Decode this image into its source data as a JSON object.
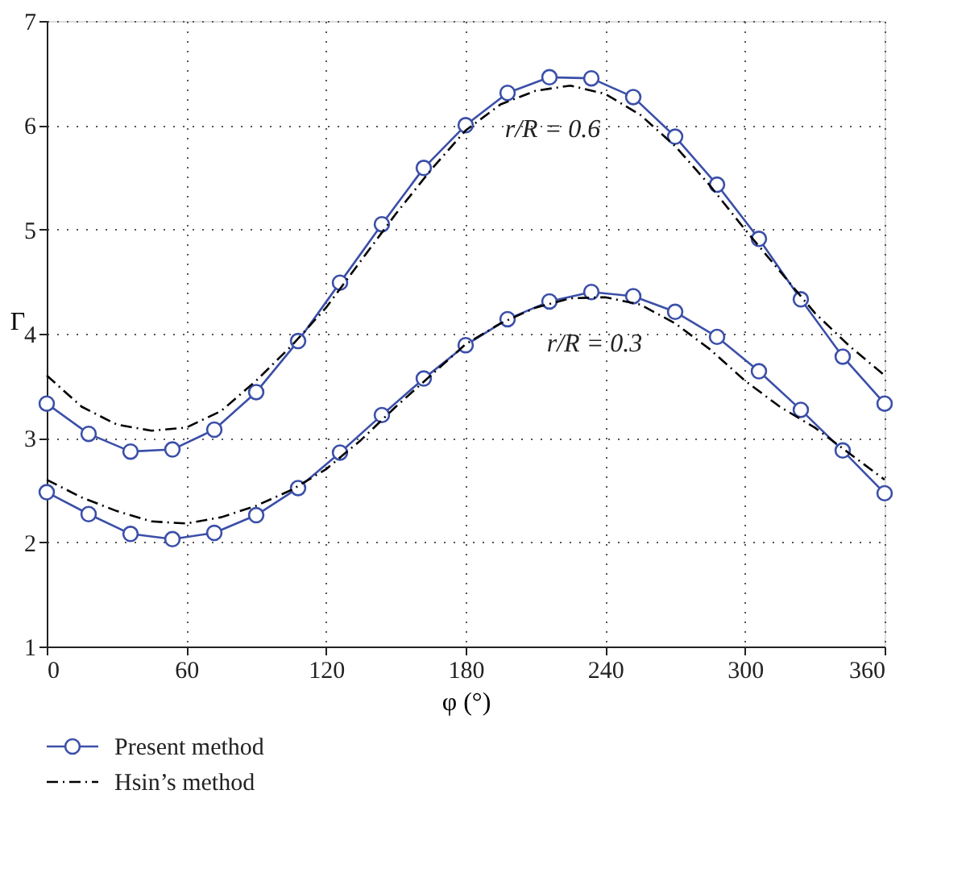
{
  "chart_data": {
    "type": "line",
    "xlabel": "φ (°)",
    "ylabel": "Γ",
    "xlim": [
      0,
      360
    ],
    "xticks": [
      0,
      60,
      120,
      180,
      240,
      300,
      360
    ],
    "ylim": [
      1,
      7
    ],
    "yticks": [
      1,
      2,
      3,
      4,
      5,
      6,
      7
    ],
    "grid": true,
    "legend": "bottom",
    "annotations": [
      "r/R = 0.6",
      "r/R = 0.3"
    ],
    "series": [
      {
        "name": "Present method",
        "color": "#3b4fa8",
        "marker": "circle",
        "line_style": "solid",
        "x": [
          0,
          18,
          36,
          54,
          72,
          90,
          108,
          126,
          144,
          162,
          180,
          198,
          216,
          234,
          252,
          270,
          288,
          306,
          324,
          342,
          360
        ],
        "values": [
          3.33,
          3.04,
          2.87,
          2.89,
          3.08,
          3.44,
          3.93,
          4.49,
          5.05,
          5.59,
          6.0,
          6.31,
          6.46,
          6.45,
          6.27,
          5.89,
          5.43,
          4.91,
          4.33,
          3.78,
          3.33
        ]
      },
      {
        "color": "#3b4fa8",
        "marker": "circle",
        "line_style": "solid",
        "x": [
          0,
          18,
          36,
          54,
          72,
          90,
          108,
          126,
          144,
          162,
          180,
          198,
          216,
          234,
          252,
          270,
          288,
          306,
          324,
          342,
          360
        ],
        "values": [
          2.48,
          2.27,
          2.08,
          2.03,
          2.09,
          2.26,
          2.52,
          2.86,
          3.22,
          3.57,
          3.89,
          4.14,
          4.31,
          4.4,
          4.36,
          4.21,
          3.97,
          3.64,
          3.27,
          2.88,
          2.47
        ]
      },
      {
        "name": "Hsin’s method",
        "color": "#000000",
        "marker": "none",
        "line_style": "dashed",
        "x": [
          0,
          15,
          30,
          45,
          60,
          75,
          90,
          105,
          120,
          135,
          150,
          165,
          180,
          195,
          210,
          225,
          240,
          255,
          270,
          285,
          300,
          315,
          330,
          345,
          360
        ],
        "values": [
          3.6,
          3.3,
          3.13,
          3.07,
          3.1,
          3.26,
          3.55,
          3.88,
          4.25,
          4.7,
          5.15,
          5.57,
          5.95,
          6.2,
          6.33,
          6.38,
          6.3,
          6.1,
          5.8,
          5.42,
          5.0,
          4.6,
          4.2,
          3.88,
          3.6
        ]
      },
      {
        "color": "#000000",
        "marker": "none",
        "line_style": "dashed",
        "x": [
          0,
          15,
          30,
          45,
          60,
          75,
          90,
          105,
          120,
          135,
          150,
          165,
          180,
          195,
          210,
          225,
          240,
          255,
          270,
          285,
          300,
          315,
          330,
          345,
          360
        ],
        "values": [
          2.6,
          2.43,
          2.3,
          2.2,
          2.18,
          2.24,
          2.35,
          2.5,
          2.7,
          2.98,
          3.3,
          3.6,
          3.9,
          4.1,
          4.25,
          4.34,
          4.35,
          4.28,
          4.1,
          3.85,
          3.55,
          3.3,
          3.1,
          2.85,
          2.6
        ]
      }
    ]
  }
}
